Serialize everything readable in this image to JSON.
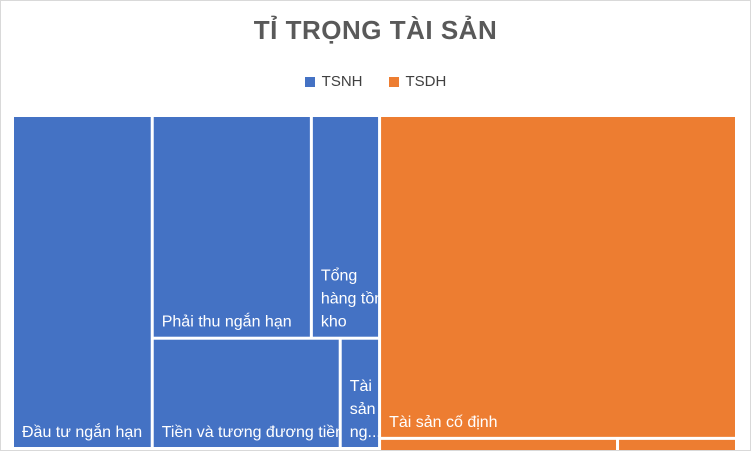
{
  "chart_data": {
    "type": "treemap",
    "title": "TỈ TRỌNG TÀI SẢN",
    "legend_position": "top",
    "series": [
      {
        "name": "TSNH",
        "color": "#4472C4",
        "items": [
          {
            "label": "Đầu tư ngắn hạn",
            "lines": [
              "Đầu tư ngắn hạn"
            ],
            "value": 19.3
          },
          {
            "label": "Phải thu ngắn hạn",
            "lines": [
              "Phải thu ngắn hạn"
            ],
            "value": 14.7
          },
          {
            "label": "Tiền và tương đương tiền",
            "lines": [
              "Tiền và tương đương tiền"
            ],
            "value": 8.6
          },
          {
            "label": "Tổng hàng tồn kho",
            "lines": [
              "Tổng",
              "hàng tồn",
              "kho"
            ],
            "value": 6.3
          },
          {
            "label": "Tài sản ng...",
            "lines": [
              "Tài",
              "sản",
              "ng..."
            ],
            "value": 1.8
          }
        ]
      },
      {
        "name": "TSDH",
        "color": "#ED7D31",
        "items": [
          {
            "label": "Tài sản cố định",
            "lines": [
              "Tài sản cố định"
            ],
            "value": 47.8
          },
          {
            "label": "",
            "lines": [],
            "value": 1.0
          },
          {
            "label": "",
            "lines": [],
            "value": 0.5
          }
        ]
      }
    ]
  }
}
